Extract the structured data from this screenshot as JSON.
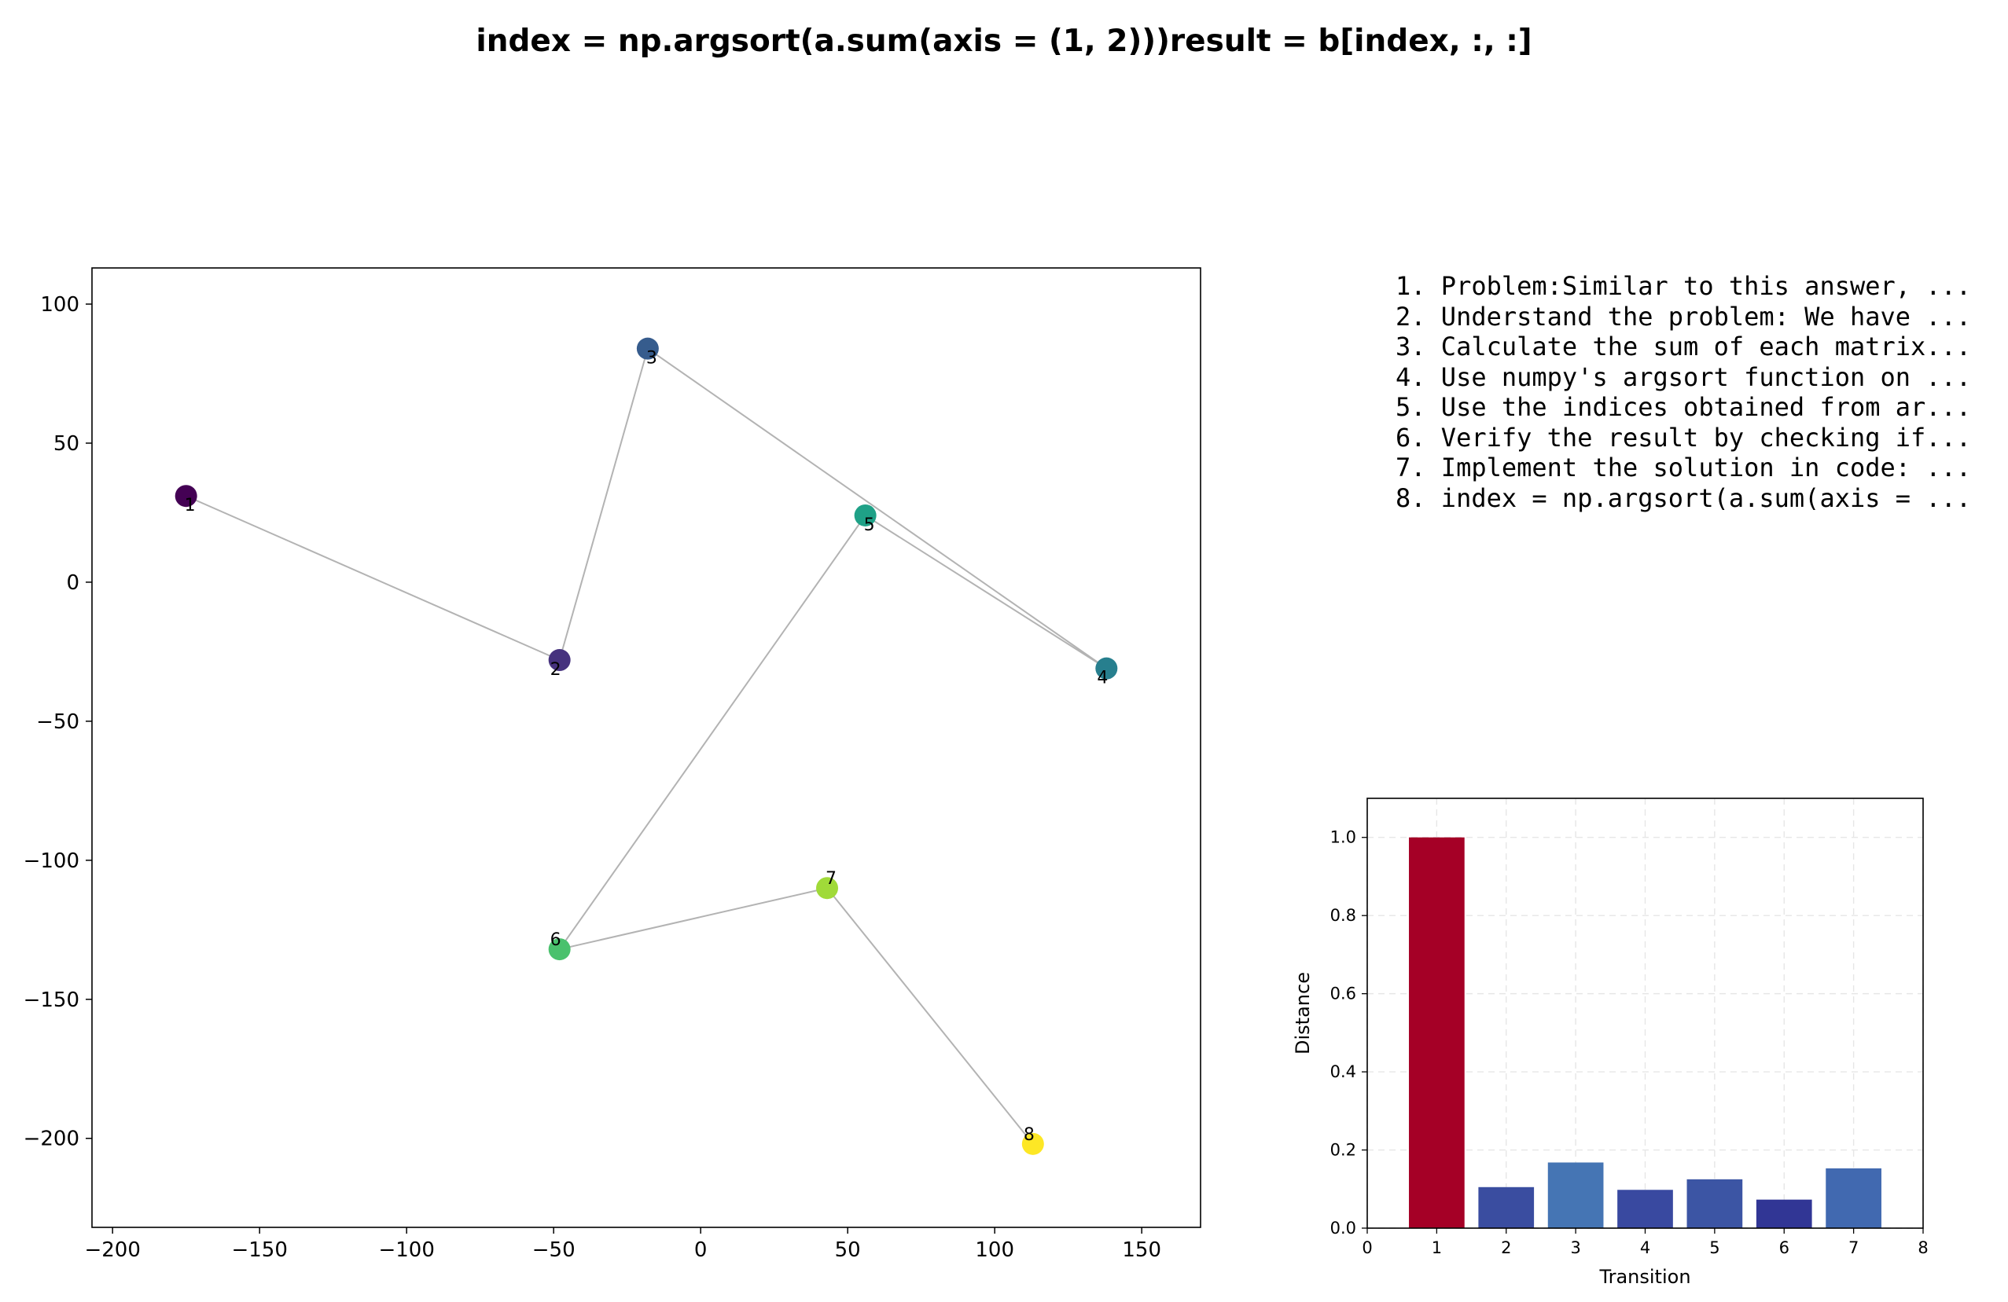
{
  "title": "index = np.argsort(a.sum(axis = (1, 2)))result = b[index, :, :]",
  "steps": [
    "1. Problem:Similar to this answer, ...",
    "2. Understand the problem: We have ...",
    "3. Calculate the sum of each matrix...",
    "4. Use numpy's argsort function on ...",
    "5. Use the indices obtained from ar...",
    "6. Verify the result by checking if...",
    "7. Implement the solution in code: ...",
    "8. index = np.argsort(a.sum(axis = ..."
  ],
  "chart_data": [
    {
      "type": "scatter",
      "title": "",
      "xlabel": "",
      "ylabel": "",
      "xlim": [
        -207,
        170
      ],
      "ylim": [
        -232,
        113
      ],
      "xticks": [
        -200,
        -150,
        -100,
        -50,
        0,
        50,
        100,
        150
      ],
      "yticks": [
        100,
        50,
        0,
        -50,
        -100,
        -150,
        -200
      ],
      "connected": true,
      "line_color": "#b3b3b3",
      "grid": false,
      "points": [
        {
          "label": "1",
          "x": -175,
          "y": 31,
          "color": "#440154"
        },
        {
          "label": "2",
          "x": -48,
          "y": -28,
          "color": "#46327e"
        },
        {
          "label": "3",
          "x": -18,
          "y": 84,
          "color": "#365c8d"
        },
        {
          "label": "4",
          "x": 138,
          "y": -31,
          "color": "#277f8e"
        },
        {
          "label": "5",
          "x": 56,
          "y": 24,
          "color": "#1fa187"
        },
        {
          "label": "6",
          "x": -48,
          "y": -132,
          "color": "#4ac16d"
        },
        {
          "label": "7",
          "x": 43,
          "y": -110,
          "color": "#a0da39"
        },
        {
          "label": "8",
          "x": 113,
          "y": -202,
          "color": "#fde725"
        }
      ]
    },
    {
      "type": "bar",
      "title": "",
      "xlabel": "Transition",
      "ylabel": "Distance",
      "xlim": [
        0,
        8
      ],
      "ylim": [
        0,
        1.1
      ],
      "xticks": [
        0,
        1,
        2,
        3,
        4,
        5,
        6,
        7,
        8
      ],
      "yticks": [
        0.0,
        0.2,
        0.4,
        0.6,
        0.8,
        1.0
      ],
      "grid": true,
      "categories": [
        "1",
        "2",
        "3",
        "4",
        "5",
        "6",
        "7"
      ],
      "values": [
        1.0,
        0.105,
        0.168,
        0.098,
        0.125,
        0.073,
        0.153
      ],
      "colors": [
        "#a50026",
        "#3a4da0",
        "#4575b4",
        "#3949a0",
        "#3c55a4",
        "#313695",
        "#4169b0"
      ]
    }
  ]
}
